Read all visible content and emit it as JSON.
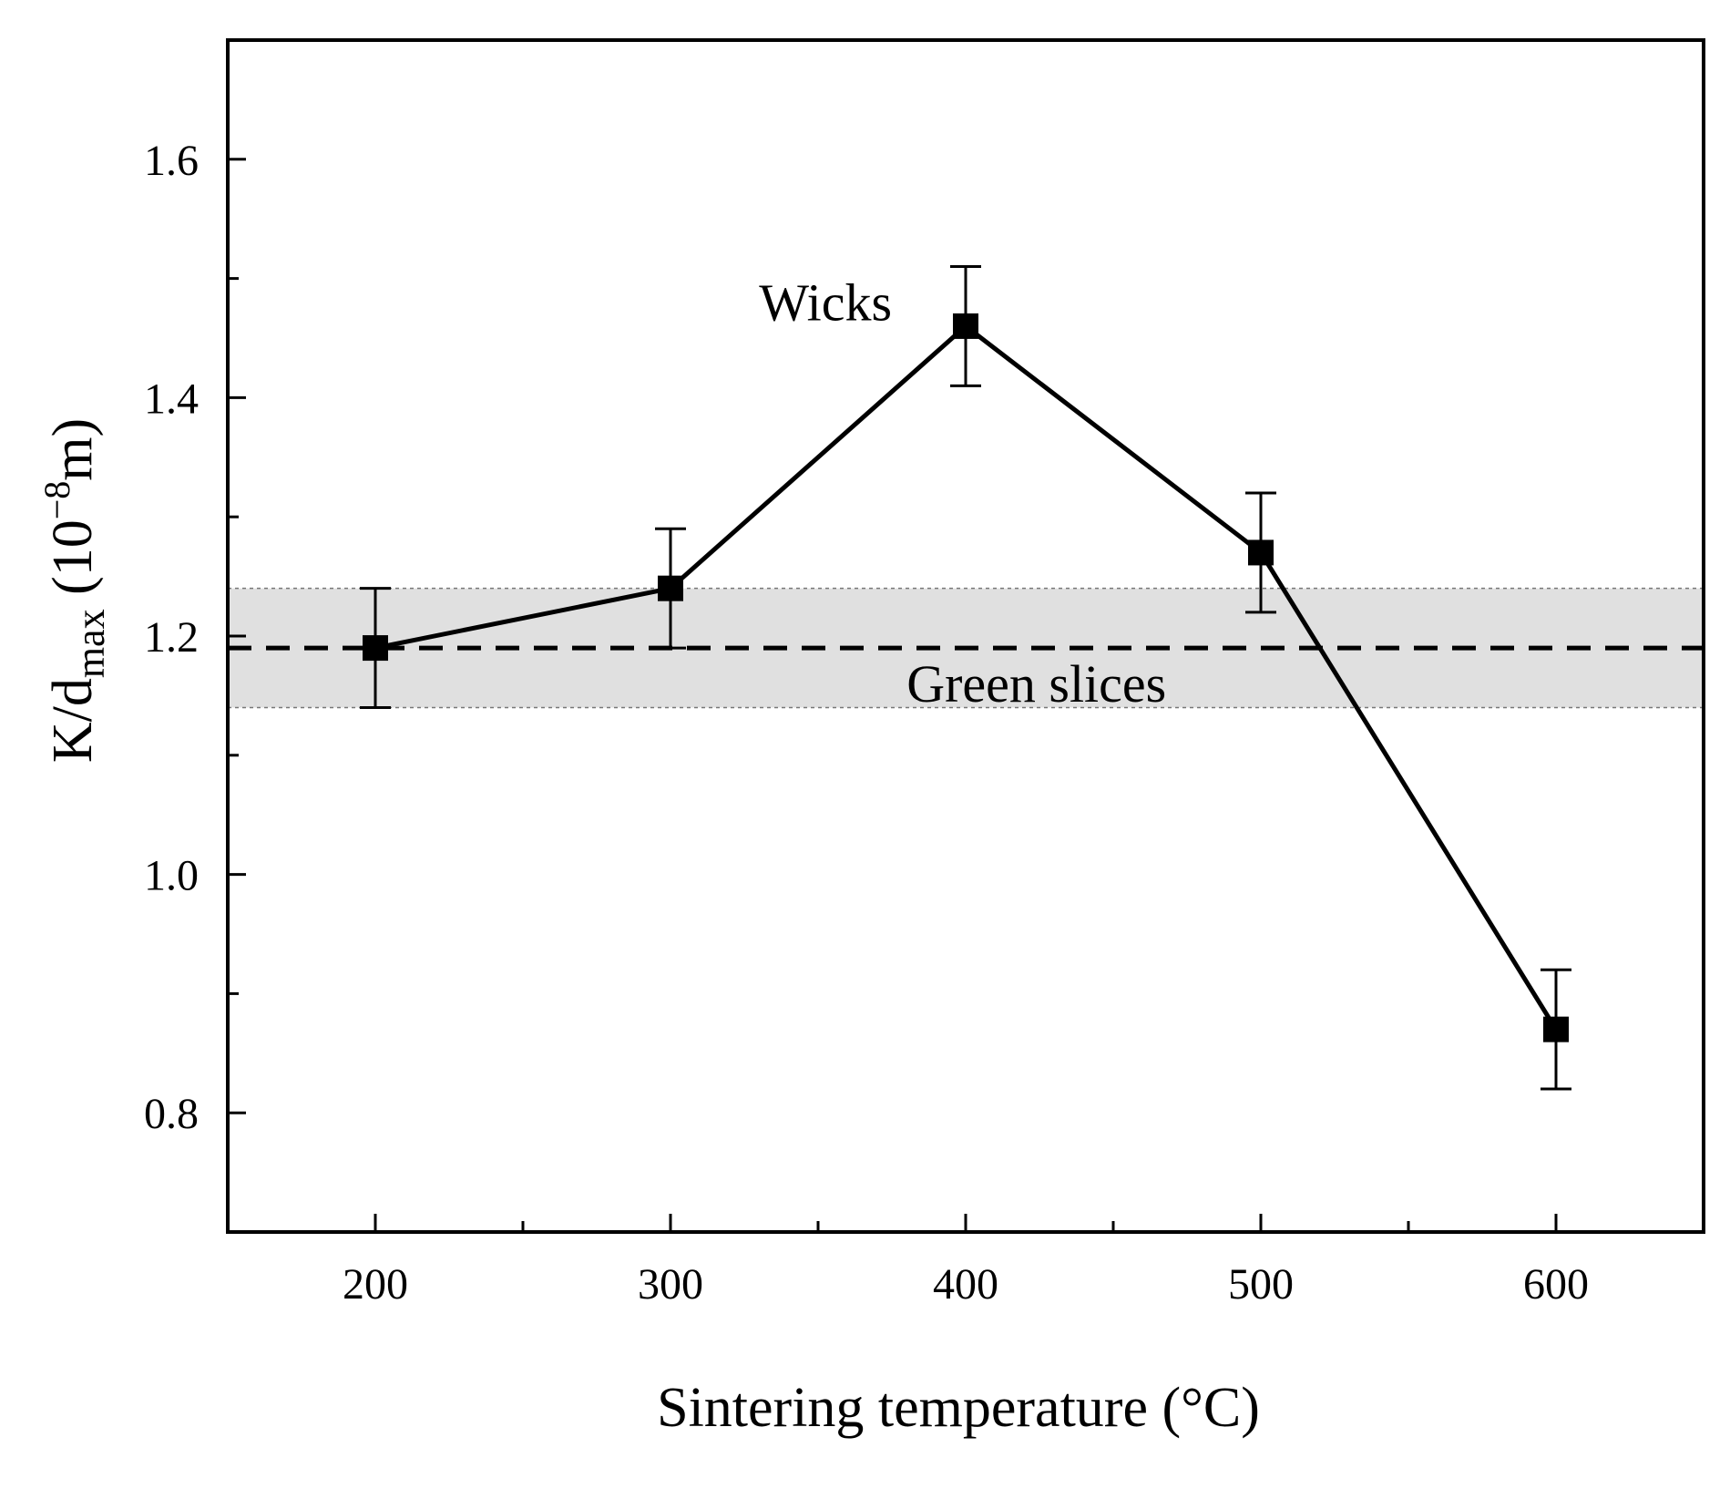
{
  "chart_data": {
    "type": "line",
    "title": "",
    "xlabel": "Sintering temperature (°C)",
    "ylabel": {
      "main": "K/d",
      "sub": "max",
      "unit_open": " (10",
      "unit_exp": "−8",
      "unit_close": "m)"
    },
    "xlim": [
      150,
      650
    ],
    "ylim": [
      0.7,
      1.7
    ],
    "x_ticks": [
      200,
      300,
      400,
      500,
      600
    ],
    "x_tick_labels": [
      "200",
      "300",
      "400",
      "500",
      "600"
    ],
    "x_minor_ticks": [
      250,
      350,
      450,
      550
    ],
    "y_ticks": [
      0.8,
      1.0,
      1.2,
      1.4,
      1.6
    ],
    "y_tick_labels": [
      "0.8",
      "1.0",
      "1.2",
      "1.4",
      "1.6"
    ],
    "y_minor_ticks": [
      0.9,
      1.1,
      1.3,
      1.5
    ],
    "series": [
      {
        "name": "Wicks",
        "x": [
          200,
          300,
          400,
          500,
          600
        ],
        "y": [
          1.19,
          1.24,
          1.46,
          1.27,
          0.87
        ],
        "yerr": [
          0.05,
          0.05,
          0.05,
          0.05,
          0.05
        ],
        "marker": "square",
        "color": "#000000"
      }
    ],
    "reference": {
      "name": "Green slices",
      "value": 1.19,
      "band": [
        1.14,
        1.24
      ],
      "band_color": "#e0e0e0",
      "line_style": "dashed"
    },
    "annotations": [
      {
        "text": "Wicks",
        "x": 330,
        "y": 1.465
      },
      {
        "text": "Green slices",
        "x": 380,
        "y": 1.145
      }
    ]
  }
}
